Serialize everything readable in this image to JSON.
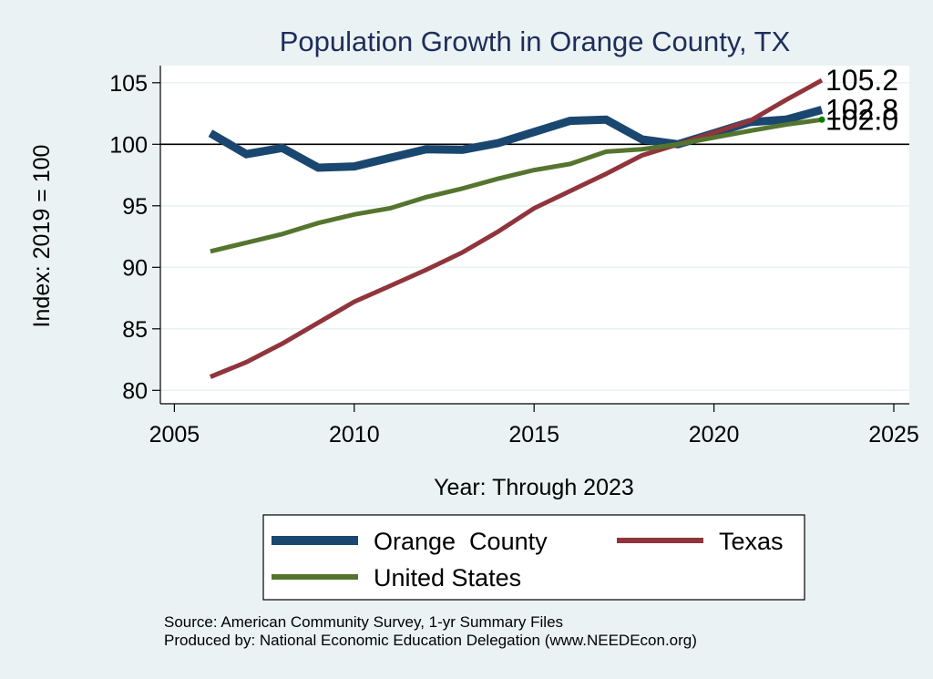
{
  "chart_data": {
    "type": "line",
    "title": "Population Growth in Orange County, TX",
    "xlabel": "Year: Through 2023",
    "ylabel": "Index: 2019 = 100",
    "xlim": [
      2005,
      2025
    ],
    "ylim": [
      80,
      105
    ],
    "xticks": [
      2005,
      2010,
      2015,
      2020,
      2025
    ],
    "yticks": [
      80,
      85,
      90,
      95,
      100,
      105
    ],
    "reference_line": 100,
    "grid": true,
    "legend_position": "bottom",
    "x": [
      2006,
      2007,
      2008,
      2009,
      2010,
      2011,
      2012,
      2013,
      2014,
      2015,
      2016,
      2017,
      2018,
      2019,
      2021,
      2022,
      2023
    ],
    "series": [
      {
        "name": "Orange  County",
        "color": "#1a476f",
        "width": "thick",
        "values": [
          100.9,
          99.2,
          99.7,
          98.1,
          98.2,
          98.9,
          99.6,
          99.55,
          100.1,
          101.0,
          101.9,
          102.0,
          100.4,
          100.0,
          101.8,
          102.0,
          102.8
        ],
        "end_label": "102.8"
      },
      {
        "name": "Texas",
        "color": "#90353b",
        "width": "medium",
        "values": [
          81.1,
          82.3,
          83.8,
          85.5,
          87.2,
          88.5,
          89.8,
          91.2,
          92.9,
          94.8,
          96.2,
          97.6,
          99.1,
          100.0,
          101.9,
          103.6,
          105.2
        ],
        "end_label": "105.2"
      },
      {
        "name": "United States",
        "color": "#55752f",
        "width": "medium",
        "values": [
          91.3,
          92.0,
          92.7,
          93.6,
          94.3,
          94.8,
          95.7,
          96.4,
          97.2,
          97.9,
          98.4,
          99.4,
          99.6,
          100.0,
          101.1,
          101.6,
          102.0
        ],
        "end_label": "102.0"
      }
    ],
    "notes": [
      "Source: American Community Survey, 1-yr Summary Files",
      "Produced by: National Economic Education Delegation (www.NEEDEcon.org)"
    ]
  },
  "colors": {
    "background": "#eaf2f3",
    "plot_background": "#ffffff",
    "title": "#1e2d5a",
    "gridline": "#eaf2f3",
    "end_dot": "#008000"
  }
}
